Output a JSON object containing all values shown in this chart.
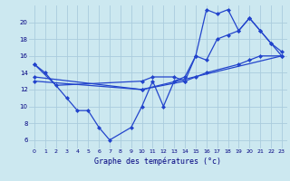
{
  "title": "Graphe des températures (°c)",
  "bg_color": "#cce8f0",
  "line_color": "#2244cc",
  "grid_color": "#aaccdd",
  "axis_bg": "#cce8f0",
  "xlim": [
    -0.5,
    23.5
  ],
  "ylim": [
    5,
    22
  ],
  "yticks": [
    6,
    8,
    10,
    12,
    14,
    16,
    18,
    20
  ],
  "xticks": [
    0,
    1,
    2,
    3,
    4,
    5,
    6,
    7,
    8,
    9,
    10,
    11,
    12,
    13,
    14,
    15,
    16,
    17,
    18,
    19,
    20,
    21,
    22,
    23
  ],
  "series": [
    {
      "x": [
        0,
        1,
        3,
        4,
        5,
        6,
        7,
        9,
        10,
        11,
        12,
        13,
        14,
        15,
        16,
        17,
        18,
        19,
        20,
        21,
        22,
        23
      ],
      "y": [
        15,
        14,
        11,
        9.5,
        9.5,
        7.5,
        6,
        7.5,
        10,
        13,
        10,
        13,
        13.5,
        16,
        21.5,
        21,
        21.5,
        19,
        20.5,
        19,
        17.5,
        16
      ]
    },
    {
      "x": [
        0,
        2,
        10,
        11,
        13,
        14,
        15,
        16,
        17,
        18,
        19,
        20,
        21,
        22,
        23
      ],
      "y": [
        15,
        12.5,
        13,
        13.5,
        13.5,
        13,
        16,
        15.5,
        18,
        18.5,
        19,
        20.5,
        19,
        17.5,
        16.5
      ]
    },
    {
      "x": [
        0,
        10,
        14,
        15,
        16,
        19,
        20,
        21,
        23
      ],
      "y": [
        13.5,
        12,
        13,
        13.5,
        14,
        15,
        15.5,
        16,
        16
      ]
    },
    {
      "x": [
        0,
        10,
        23
      ],
      "y": [
        13,
        12,
        16
      ]
    }
  ]
}
